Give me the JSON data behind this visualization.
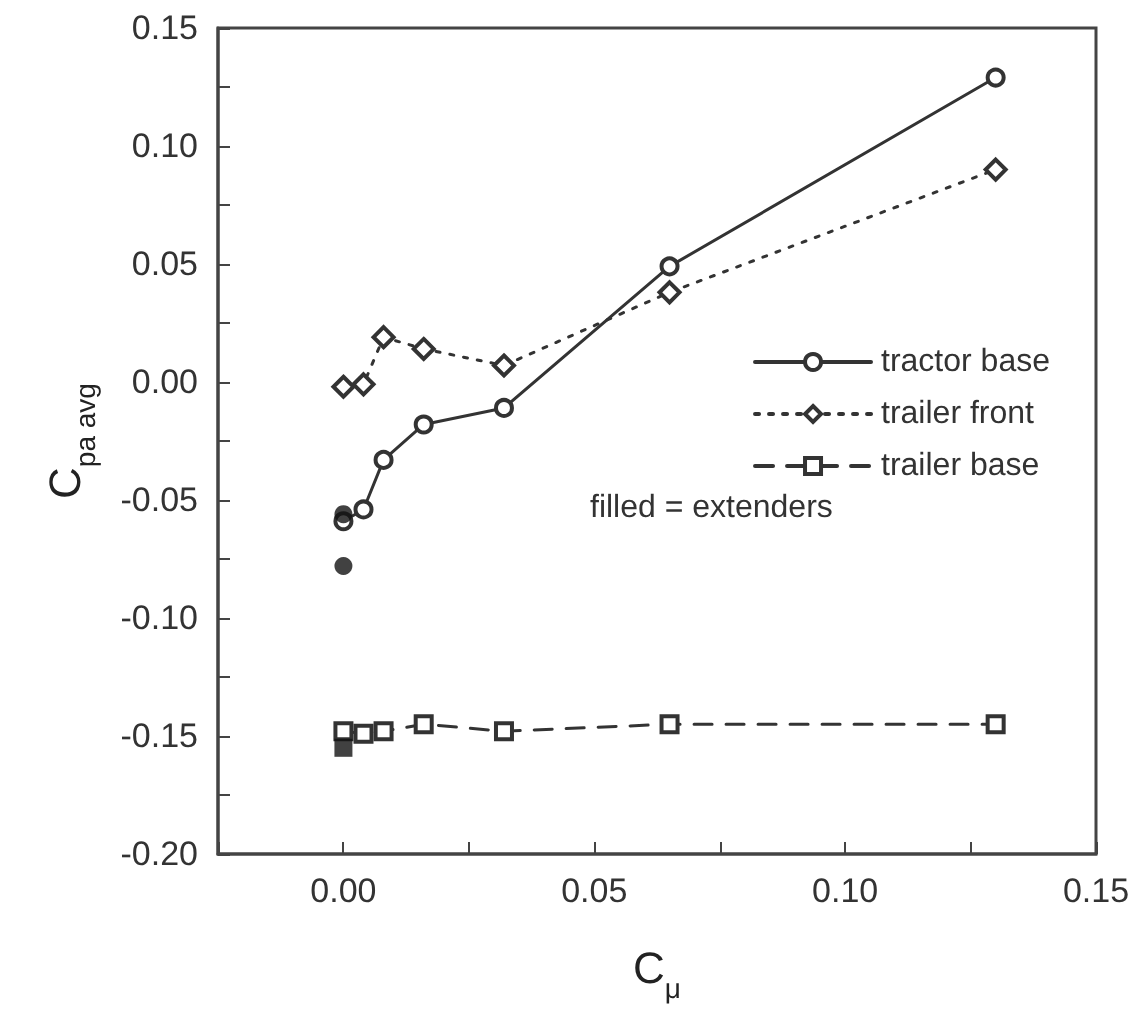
{
  "chart_data": {
    "type": "line",
    "xlabel": "C$_{μ}$",
    "ylabel": "C$_{pa avg}$",
    "xlim": [
      -0.025,
      0.15
    ],
    "xticks": [
      {
        "value": -0.025,
        "label": null
      },
      {
        "value": 0,
        "label": "0.00"
      },
      {
        "value": 0.025,
        "label": null
      },
      0.05,
      {
        "value": 0.075,
        "label": null
      },
      {
        "value": 0.1,
        "label": "0.10"
      },
      {
        "value": 0.125,
        "label": null
      },
      0.15
    ],
    "ylim": [
      -0.2,
      0.15
    ],
    "yticks": [
      {
        "value": -0.2,
        "label": "-0.20"
      },
      {
        "value": -0.175,
        "label": null
      },
      -0.15,
      {
        "value": -0.125,
        "label": null
      },
      {
        "value": -0.1,
        "label": "-0.10"
      },
      {
        "value": -0.075,
        "label": null
      },
      -0.05,
      {
        "value": -0.025,
        "label": null
      },
      {
        "value": 0,
        "label": "0.00"
      },
      {
        "value": 0.025,
        "label": null
      },
      0.05,
      {
        "value": 0.075,
        "label": null
      },
      {
        "value": 0.1,
        "label": "0.10"
      },
      {
        "value": 0.125,
        "label": null
      },
      0.15
    ],
    "grid": false,
    "legend": "right",
    "annotations": [
      "filled = extenders"
    ],
    "series": [
      {
        "name": "tractor base",
        "color": "#333333",
        "marker": "circle",
        "line_style": "solid",
        "x": [
          0,
          0.004,
          0.008,
          0.016,
          0.032,
          0.065,
          0.13
        ],
        "values": [
          -0.059,
          -0.054,
          -0.033,
          -0.018,
          -0.011,
          0.049,
          0.129
        ]
      },
      {
        "name": "trailer front",
        "color": "#333333",
        "marker": "diamond",
        "line_style": "dotted",
        "x": [
          0,
          0.004,
          0.008,
          0.016,
          0.032,
          0.065,
          0.13
        ],
        "values": [
          -0.002,
          -0.001,
          0.019,
          0.014,
          0.007,
          0.038,
          0.09
        ]
      },
      {
        "name": "trailer base",
        "color": "#333333",
        "marker": "square",
        "line_style": "dashed",
        "x": [
          0,
          0.004,
          0.008,
          0.016,
          0.032,
          0.065,
          0.13
        ],
        "values": [
          -0.148,
          -0.149,
          -0.148,
          -0.145,
          -0.148,
          -0.145,
          -0.145
        ]
      },
      {
        "type": "scatter",
        "color": "#111111",
        "marker": "circle",
        "x": [
          0,
          0
        ],
        "values": [
          -0.056,
          -0.078
        ]
      },
      {
        "type": "scatter",
        "color": "#111111",
        "marker": "square",
        "x": [
          0
        ],
        "values": [
          -0.155
        ]
      }
    ]
  }
}
